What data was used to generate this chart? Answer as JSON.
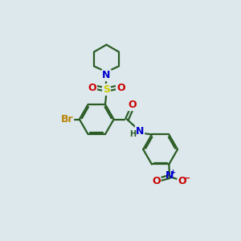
{
  "bg_color": "#dce8ec",
  "bond_color": "#2a5c24",
  "bond_lw": 1.6,
  "atom_colors": {
    "Br": "#b8860b",
    "N": "#0000cc",
    "S": "#cccc00",
    "O": "#cc0000",
    "H": "#2a5c24"
  },
  "fs": 9,
  "sfs": 7,
  "R_arom": 0.72,
  "R_pip": 0.6
}
